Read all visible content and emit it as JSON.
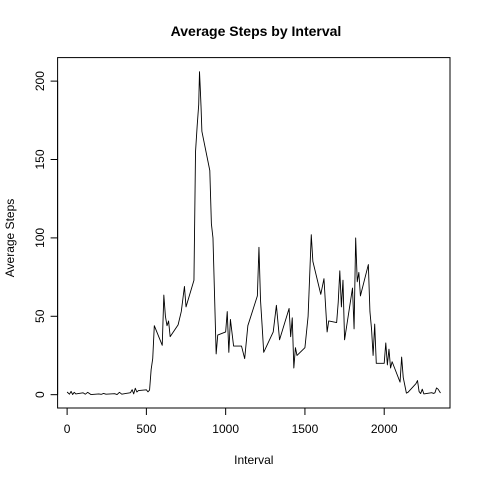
{
  "chart_data": {
    "type": "line",
    "title": "Average Steps by Interval",
    "xlabel": "Interval",
    "ylabel": "Average Steps",
    "xlim": [
      -60,
      2415
    ],
    "ylim": [
      -8.5,
      215
    ],
    "xticks": [
      0,
      500,
      1000,
      1500,
      2000
    ],
    "yticks": [
      0,
      50,
      100,
      150,
      200
    ],
    "grid": false,
    "legend": "none",
    "line_color": "#000000",
    "series": [
      {
        "x": [
          0,
          15,
          25,
          35,
          45,
          55,
          100,
          115,
          130,
          150,
          200,
          215,
          230,
          245,
          300,
          315,
          330,
          345,
          400,
          410,
          420,
          430,
          440,
          450,
          500,
          510,
          520,
          530,
          540,
          550,
          600,
          610,
          620,
          630,
          640,
          650,
          700,
          720,
          740,
          750,
          800,
          810,
          820,
          830,
          835,
          840,
          845,
          850,
          900,
          910,
          920,
          930,
          940,
          950,
          1000,
          1010,
          1020,
          1030,
          1050,
          1100,
          1120,
          1140,
          1200,
          1210,
          1220,
          1230,
          1240,
          1300,
          1320,
          1340,
          1400,
          1410,
          1420,
          1430,
          1440,
          1450,
          1500,
          1520,
          1540,
          1550,
          1600,
          1620,
          1640,
          1650,
          1700,
          1710,
          1720,
          1730,
          1740,
          1750,
          1800,
          1810,
          1820,
          1830,
          1840,
          1850,
          1900,
          1910,
          1920,
          1930,
          1940,
          1950,
          2000,
          2010,
          2020,
          2030,
          2040,
          2050,
          2100,
          2110,
          2120,
          2130,
          2140,
          2150,
          2200,
          2210,
          2220,
          2230,
          2240,
          2250,
          2300,
          2310,
          2320,
          2330,
          2340,
          2355
        ],
        "y": [
          1.7,
          0.3,
          2.1,
          0.1,
          1.5,
          0.5,
          1.2,
          0.3,
          1.5,
          0.1,
          0.5,
          0.2,
          0.8,
          0.3,
          0.6,
          0.1,
          1.5,
          0.3,
          1.3,
          3.2,
          0.5,
          4.1,
          1.7,
          2.6,
          3.1,
          1.8,
          2.9,
          16.0,
          23.0,
          44.0,
          31.5,
          63.5,
          50.0,
          44.0,
          47.0,
          37.0,
          44.5,
          53.0,
          69.0,
          56.0,
          73.0,
          155.0,
          171.0,
          185.0,
          206.0,
          195.0,
          183.0,
          168.0,
          143.0,
          109.0,
          100.0,
          63.0,
          26.0,
          38.0,
          40.0,
          53.0,
          27.0,
          48.0,
          31.0,
          31.0,
          23.0,
          44.0,
          63.0,
          94.0,
          60.0,
          44.0,
          27.0,
          40.0,
          57.0,
          35.0,
          55.0,
          37.0,
          49.0,
          17.0,
          30.0,
          25.0,
          30.0,
          50.0,
          102.0,
          85.0,
          64.0,
          74.0,
          40.0,
          47.0,
          46.0,
          59.0,
          79.0,
          56.0,
          73.0,
          35.0,
          68.0,
          42.0,
          100.0,
          72.0,
          78.0,
          63.0,
          83.0,
          53.0,
          42.0,
          25.0,
          45.0,
          20.0,
          20.0,
          33.0,
          19.0,
          29.0,
          17.0,
          21.0,
          8.0,
          24.0,
          11.0,
          6.0,
          1.0,
          1.5,
          7.0,
          9.0,
          2.0,
          0.7,
          3.5,
          0.5,
          1.3,
          0.8,
          1.2,
          4.3,
          3.5,
          1.1
        ]
      }
    ]
  }
}
